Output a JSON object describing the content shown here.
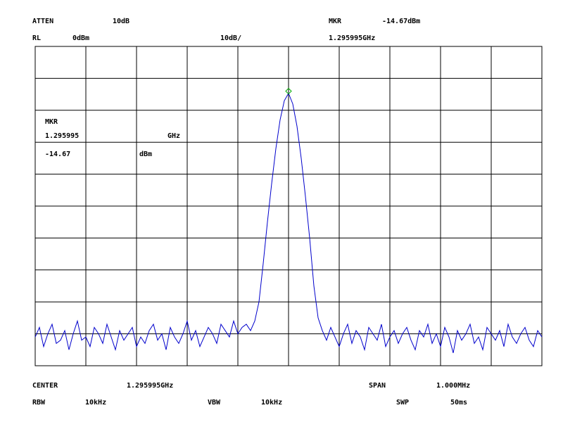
{
  "header": {
    "atten_label": "ATTEN",
    "atten_value": "10dB",
    "marker_label": "MKR",
    "marker_level": "-14.67dBm",
    "rl_label": "RL",
    "rl_value": "0dBm",
    "scale": "10dB/",
    "marker_freq": "1.295995GHz"
  },
  "marker_box": {
    "label": "MKR",
    "freq": "1.295995",
    "freq_unit": "GHz",
    "level": "-14.67",
    "level_unit": "dBm"
  },
  "footer": {
    "center_label": "CENTER",
    "center_value": "1.295995GHz",
    "span_label": "SPAN",
    "span_value": "1.000MHz",
    "rbw_label": "RBW",
    "rbw_value": "10kHz",
    "vbw_label": "VBW",
    "vbw_value": "10kHz",
    "swp_label": "SWP",
    "swp_value": "50ms"
  },
  "chart_data": {
    "type": "line",
    "color": "#0000cc",
    "marker_color": "#00aa00",
    "marker_index": 60,
    "ylim": [
      -100,
      0
    ],
    "values": [
      -91,
      -88,
      -94,
      -90,
      -87,
      -93,
      -92,
      -89,
      -95,
      -90,
      -86,
      -92,
      -91,
      -94,
      -88,
      -90,
      -93,
      -87,
      -91,
      -95,
      -89,
      -92,
      -90,
      -88,
      -94,
      -91,
      -93,
      -89,
      -87,
      -92,
      -90,
      -95,
      -88,
      -91,
      -93,
      -90,
      -86,
      -92,
      -89,
      -94,
      -91,
      -88,
      -90,
      -93,
      -87,
      -89,
      -91,
      -86,
      -90,
      -88,
      -87,
      -89,
      -86,
      -80,
      -68,
      -55,
      -43,
      -32,
      -23,
      -17,
      -14.67,
      -18,
      -25,
      -35,
      -47,
      -60,
      -75,
      -85,
      -89,
      -92,
      -88,
      -91,
      -94,
      -90,
      -87,
      -93,
      -89,
      -91,
      -95,
      -88,
      -90,
      -92,
      -87,
      -94,
      -91,
      -89,
      -93,
      -90,
      -88,
      -92,
      -95,
      -89,
      -91,
      -87,
      -93,
      -90,
      -94,
      -88,
      -91,
      -96,
      -89,
      -92,
      -90,
      -87,
      -93,
      -91,
      -95,
      -88,
      -90,
      -92,
      -89,
      -94,
      -87,
      -91,
      -93,
      -90,
      -88,
      -92,
      -94,
      -89,
      -91
    ]
  }
}
